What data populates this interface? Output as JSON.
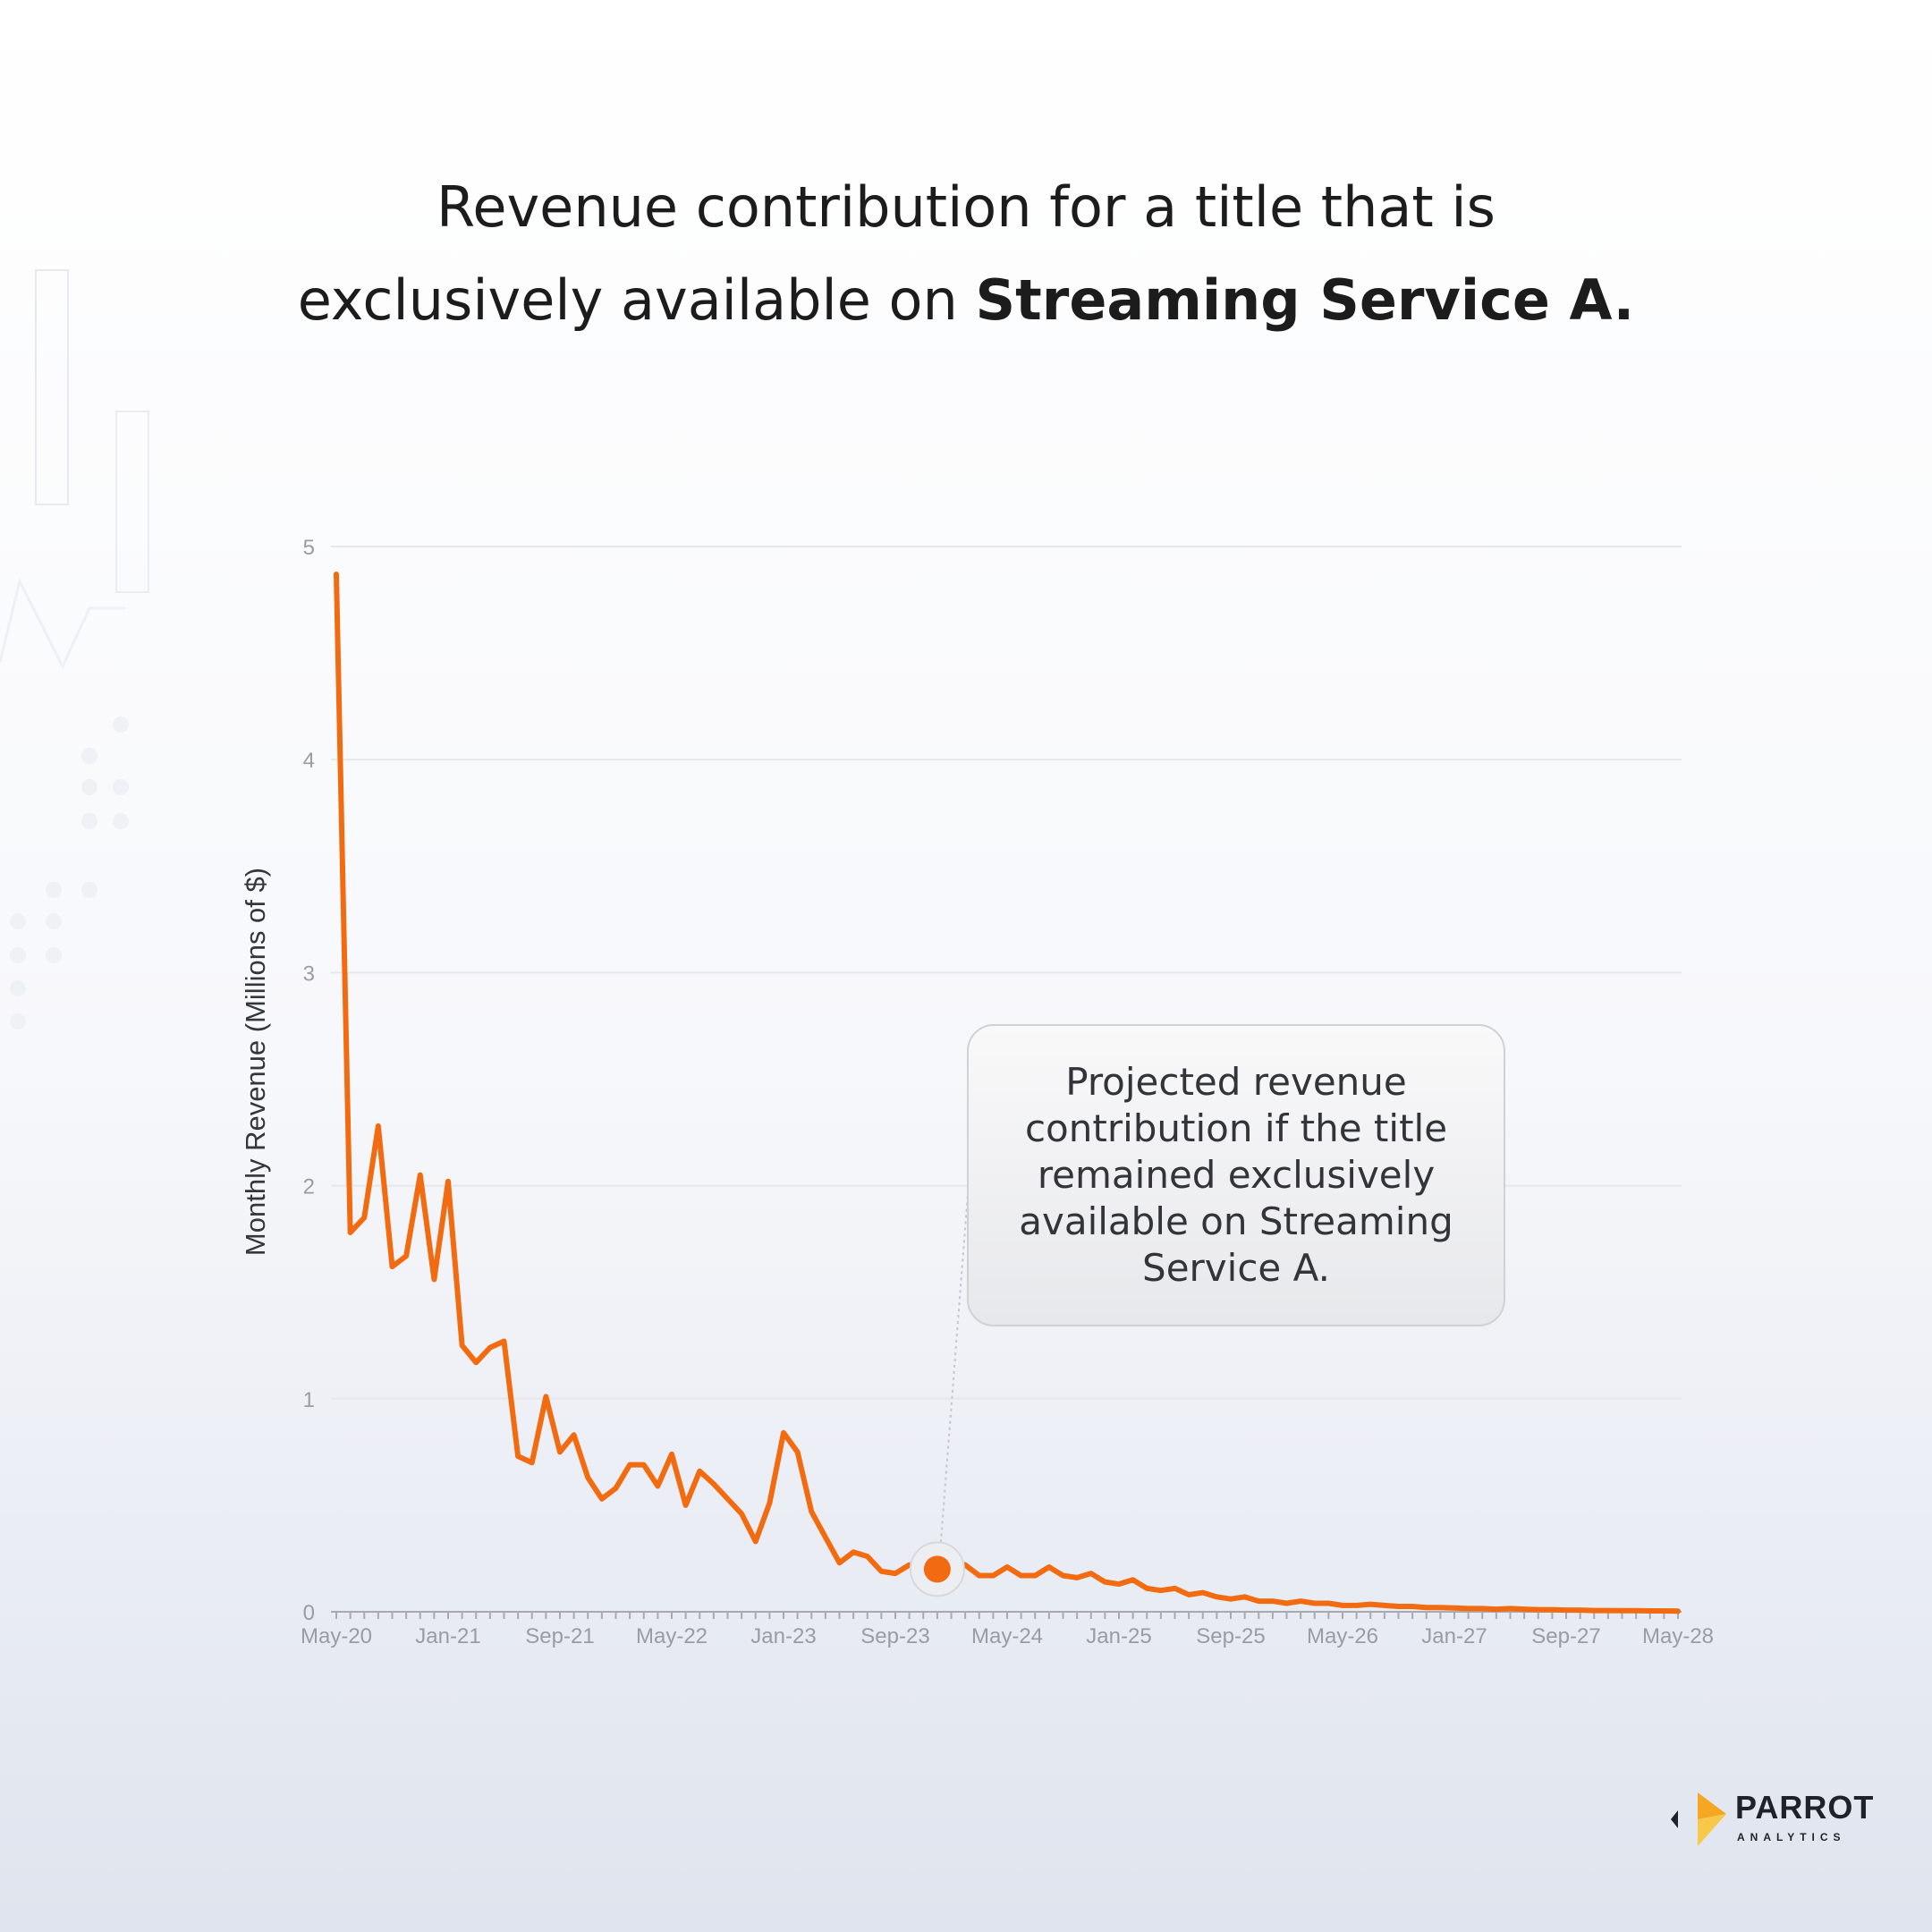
{
  "title": {
    "line1": "Revenue contribution for a title that is",
    "line2_prefix": "exclusively available on ",
    "line2_bold": "Streaming Service A."
  },
  "callout": {
    "text": "Projected revenue contribution if the title remained exclusively available on Streaming Service A."
  },
  "logo": {
    "word": "PARROT",
    "sub": "ANALYTICS"
  },
  "colors": {
    "series": "#f26b10",
    "grid": "#e6e7ea",
    "axis_text": "#9a9ca2",
    "background": "#f7f8fb"
  },
  "chart_data": {
    "type": "line",
    "ylabel": "Monthly Revenue (Millions of $)",
    "xlabel": "",
    "ylim": [
      0,
      5
    ],
    "yticks": [
      0,
      1,
      2,
      3,
      4,
      5
    ],
    "xticks": [
      "May-20",
      "Jan-21",
      "Sep-21",
      "May-22",
      "Jan-23",
      "Sep-23",
      "May-24",
      "Jan-25",
      "Sep-25",
      "May-26",
      "Jan-27",
      "Sep-27",
      "May-28"
    ],
    "x_start": "May-20",
    "x_end": "May-28",
    "grid": true,
    "highlight": {
      "x": "Dec-23",
      "y": 0.2
    },
    "series": [
      {
        "values": [
          4.87,
          1.78,
          1.85,
          2.28,
          1.62,
          1.67,
          2.05,
          1.56,
          2.02,
          1.25,
          1.17,
          1.24,
          1.27,
          0.73,
          0.7,
          1.01,
          0.75,
          0.83,
          0.63,
          0.53,
          0.58,
          0.69,
          0.69,
          0.59,
          0.74,
          0.5,
          0.66,
          0.6,
          0.53,
          0.46,
          0.33,
          0.51,
          0.84,
          0.75,
          0.47,
          0.35,
          0.23,
          0.28,
          0.26,
          0.19,
          0.18,
          0.22,
          0.2,
          0.18,
          0.17,
          0.22,
          0.17,
          0.17,
          0.21,
          0.17,
          0.17,
          0.21,
          0.17,
          0.16,
          0.18,
          0.14,
          0.13,
          0.15,
          0.11,
          0.1,
          0.11,
          0.08,
          0.09,
          0.07,
          0.06,
          0.07,
          0.05,
          0.05,
          0.04,
          0.05,
          0.04,
          0.04,
          0.03,
          0.03,
          0.035,
          0.03,
          0.025,
          0.025,
          0.02,
          0.02,
          0.018,
          0.015,
          0.015,
          0.012,
          0.015,
          0.012,
          0.01,
          0.01,
          0.008,
          0.008,
          0.006,
          0.006,
          0.005,
          0.005,
          0.004,
          0.004,
          0.003
        ]
      }
    ]
  }
}
